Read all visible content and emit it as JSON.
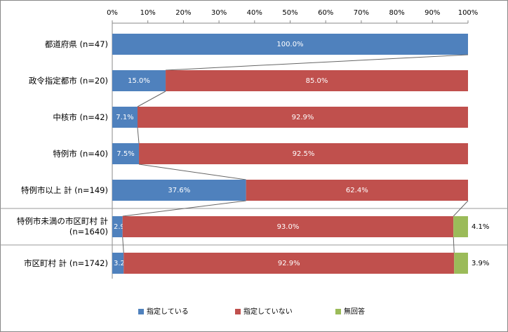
{
  "chart_data": {
    "type": "stacked-barh",
    "categories": [
      "都道府県 (n=47)",
      "政令指定都市 (n=20)",
      "中核市 (n=42)",
      "特例市 (n=40)",
      "特例市以上 計 (n=149)",
      "特例市未満の市区町村 計 (n=1640)",
      "市区町村 計 (n=1742)"
    ],
    "series": [
      {
        "name": "指定している",
        "color": "#4f81bd",
        "values": [
          100,
          15,
          7.1,
          7.5,
          37.6,
          2.9,
          3.2
        ],
        "value_labels": [
          "100.0%",
          "15.0%",
          "7.1%",
          "7.5%",
          "37.6%",
          "2.9%",
          "3.2%"
        ]
      },
      {
        "name": "指定していない",
        "color": "#c0504d",
        "values": [
          null,
          85,
          92.9,
          92.5,
          62.4,
          93,
          92.9
        ],
        "value_labels": [
          null,
          "85.0%",
          "92.9%",
          "92.5%",
          "62.4%",
          "93.0%",
          "92.9%"
        ]
      },
      {
        "name": "無回答",
        "color": "#9bbb59",
        "values": [
          null,
          null,
          null,
          null,
          null,
          4.1,
          3.9
        ],
        "value_labels": [
          null,
          null,
          null,
          null,
          null,
          "4.1%",
          "3.9%"
        ]
      }
    ],
    "xlim": [
      0,
      100
    ],
    "xticks": [
      {
        "value": 0,
        "label": "0%"
      },
      {
        "value": 10,
        "label": "10%"
      },
      {
        "value": 20,
        "label": "20%"
      },
      {
        "value": 30,
        "label": "30%"
      },
      {
        "value": 40,
        "label": "40%"
      },
      {
        "value": 50,
        "label": "50%"
      },
      {
        "value": 60,
        "label": "60%"
      },
      {
        "value": 70,
        "label": "70%"
      },
      {
        "value": 80,
        "label": "80%"
      },
      {
        "value": 90,
        "label": "90%"
      },
      {
        "value": 100,
        "label": "100%"
      }
    ],
    "legend": "bottom"
  }
}
